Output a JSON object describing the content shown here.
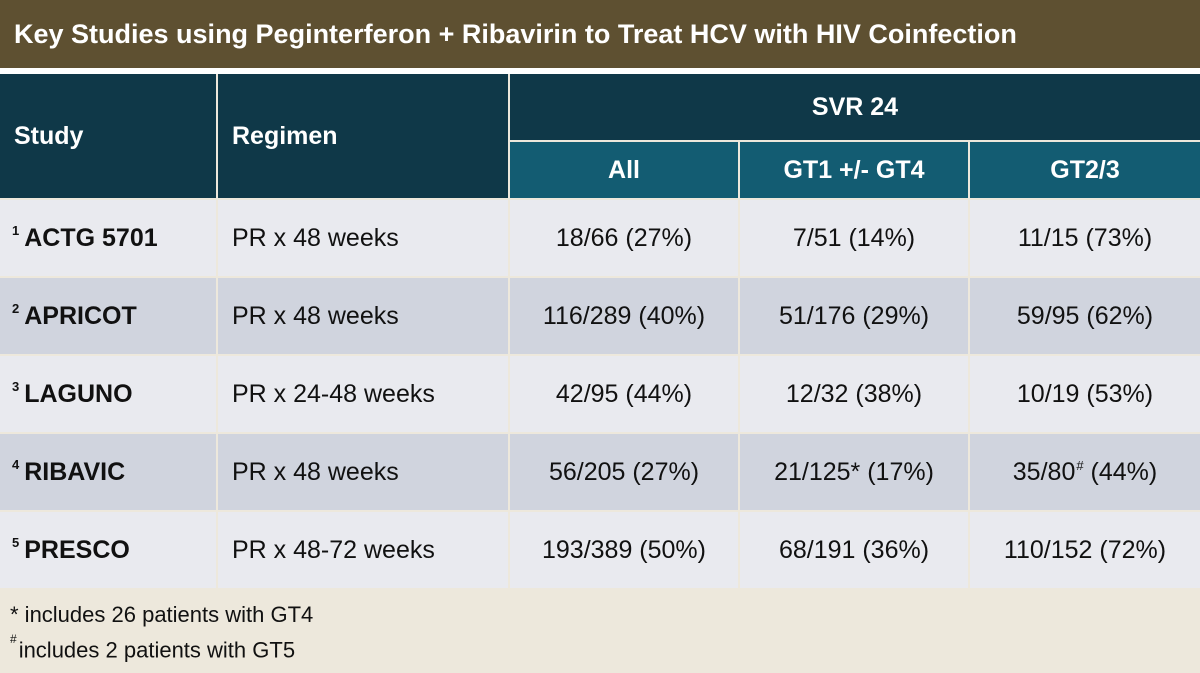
{
  "title": "Key Studies using Peginterferon + Ribavirin to Treat HCV with HIV Coinfection",
  "header": {
    "study": "Study",
    "regimen": "Regimen",
    "svr": "SVR 24",
    "all": "All",
    "gt1": "GT1 +/- GT4",
    "gt23": "GT2/3"
  },
  "rows": [
    {
      "ref": "1",
      "study": "ACTG 5701",
      "regimen": "PR x 48 weeks",
      "all": "18/66 (27%)",
      "gt1": "7/51 (14%)",
      "gt23": "11/15 (73%)"
    },
    {
      "ref": "2",
      "study": "APRICOT",
      "regimen": "PR x 48 weeks",
      "all": "116/289 (40%)",
      "gt1": "51/176 (29%)",
      "gt23": "59/95 (62%)"
    },
    {
      "ref": "3",
      "study": "LAGUNO",
      "regimen": "PR x 24-48 weeks",
      "all": "42/95 (44%)",
      "gt1": "12/32 (38%)",
      "gt23": "10/19 (53%)"
    },
    {
      "ref": "4",
      "study": "RIBAVIC",
      "regimen": "PR x 48 weeks",
      "all": "56/205 (27%)",
      "gt1_a": "21/125",
      "gt1_mark": "*",
      "gt1_b": " (17%)",
      "gt23_a": "35/80",
      "gt23_mark": "#",
      "gt23_b": " (44%)"
    },
    {
      "ref": "5",
      "study": "PRESCO",
      "regimen": "PR x 48-72 weeks",
      "all": "193/389 (50%)",
      "gt1": "68/191 (36%)",
      "gt23": "110/152 (72%)"
    }
  ],
  "footnotes": [
    {
      "mark": "*",
      "text": " includes 26 patients with GT4"
    },
    {
      "mark": "#",
      "text": "includes 2 patients with GT5"
    }
  ]
}
